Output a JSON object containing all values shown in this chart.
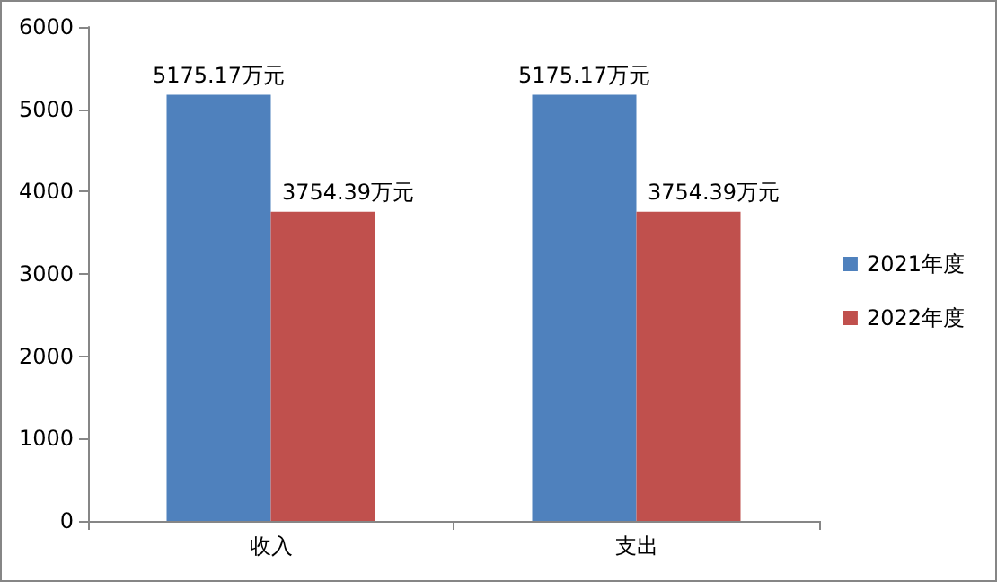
{
  "chart_data": {
    "type": "bar",
    "categories": [
      "收入",
      "支出"
    ],
    "series": [
      {
        "name": "2021年度",
        "color": "#4f81bd",
        "values": [
          5175.17,
          5175.17
        ],
        "value_labels": [
          "5175.17万元",
          "5175.17万元"
        ]
      },
      {
        "name": "2022年度",
        "color": "#c0504d",
        "values": [
          3754.39,
          3754.39
        ],
        "value_labels": [
          "3754.39万元",
          "3754.39万元"
        ]
      }
    ],
    "ylim": [
      0,
      6000
    ],
    "yticks": [
      0,
      1000,
      2000,
      3000,
      4000,
      5000,
      6000
    ],
    "grid": false,
    "legend": "right"
  }
}
